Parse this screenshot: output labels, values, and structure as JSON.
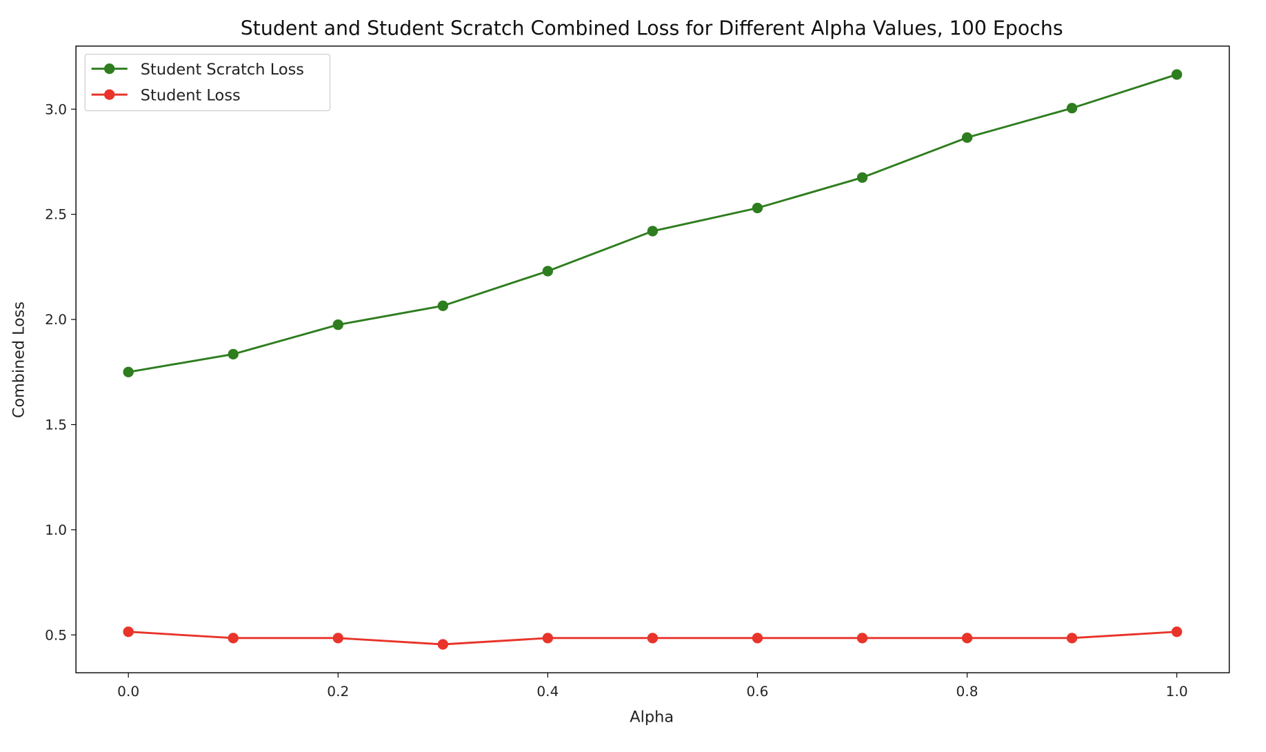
{
  "chart_data": {
    "type": "line",
    "title": "Student and Student Scratch Combined Loss for Different Alpha Values, 100 Epochs",
    "xlabel": "Alpha",
    "ylabel": "Combined Loss",
    "x": [
      0.0,
      0.1,
      0.2,
      0.3,
      0.4,
      0.5,
      0.6,
      0.7,
      0.8,
      0.9,
      1.0
    ],
    "xlim": [
      -0.05,
      1.05
    ],
    "ylim": [
      0.32,
      3.3
    ],
    "xticks": [
      "0.0",
      "0.2",
      "0.4",
      "0.6",
      "0.8",
      "1.0"
    ],
    "yticks": [
      "0.5",
      "1.0",
      "1.5",
      "2.0",
      "2.5",
      "3.0"
    ],
    "grid": false,
    "legend_position": "top-left",
    "series": [
      {
        "name": "Student Scratch Loss",
        "color": "#2e7d1e",
        "marker": "circle",
        "values": [
          1.75,
          1.835,
          1.975,
          2.065,
          2.23,
          2.42,
          2.53,
          2.675,
          2.865,
          3.005,
          3.165
        ]
      },
      {
        "name": "Student Loss",
        "color": "#e8342a",
        "marker": "circle",
        "values": [
          0.515,
          0.485,
          0.485,
          0.455,
          0.485,
          0.485,
          0.485,
          0.485,
          0.485,
          0.485,
          0.515
        ]
      }
    ]
  }
}
